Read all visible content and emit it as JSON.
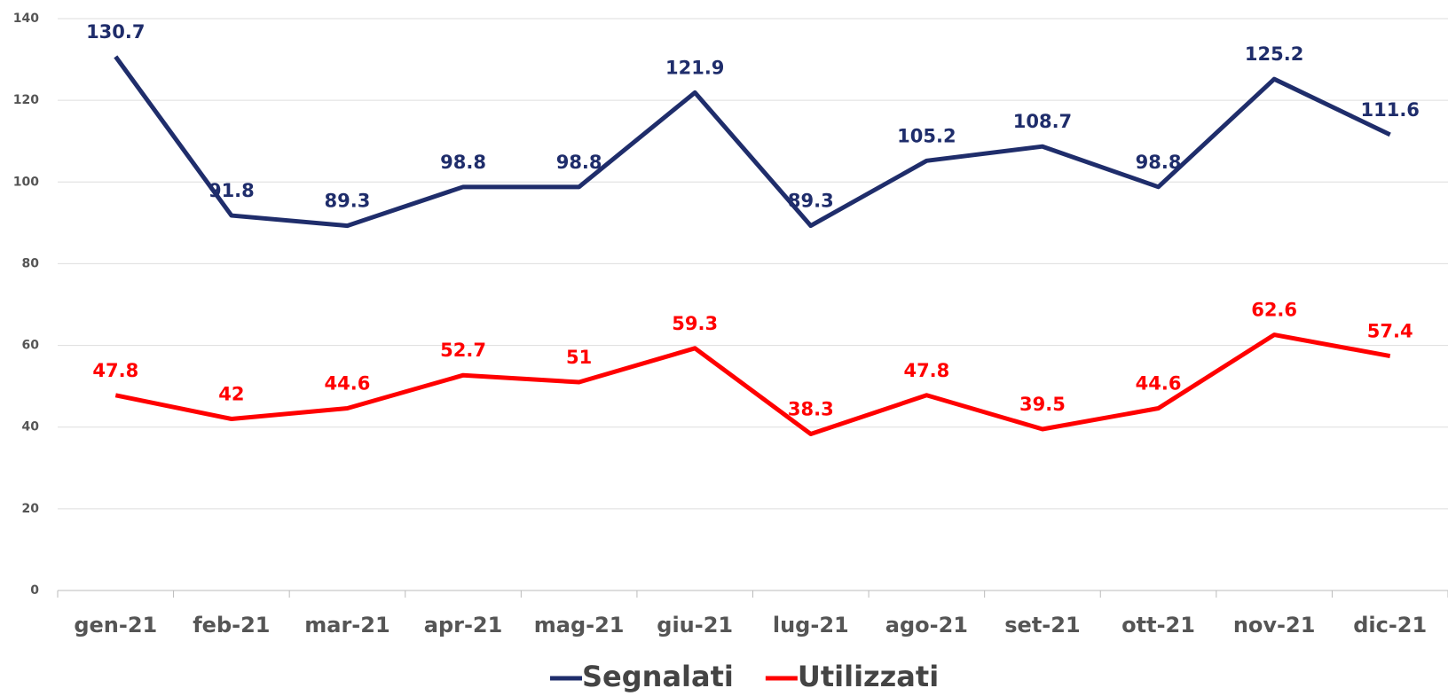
{
  "chart_data": {
    "type": "line",
    "categories": [
      "gen-21",
      "feb-21",
      "mar-21",
      "apr-21",
      "mag-21",
      "giu-21",
      "lug-21",
      "ago-21",
      "set-21",
      "ott-21",
      "nov-21",
      "dic-21"
    ],
    "series": [
      {
        "name": "Segnalati",
        "color": "#1f2d6b",
        "values": [
          130.7,
          91.8,
          89.3,
          98.8,
          98.8,
          121.9,
          89.3,
          105.2,
          108.7,
          98.8,
          125.2,
          111.6
        ]
      },
      {
        "name": "Utilizzati",
        "color": "#ff0000",
        "values": [
          47.8,
          42,
          44.6,
          52.7,
          51,
          59.3,
          38.3,
          47.8,
          39.5,
          44.6,
          62.6,
          57.4
        ]
      }
    ],
    "ylim": [
      0,
      140
    ],
    "yticks": [
      0,
      20,
      40,
      60,
      80,
      100,
      120,
      140
    ],
    "grid": true,
    "legend": "bottom"
  }
}
